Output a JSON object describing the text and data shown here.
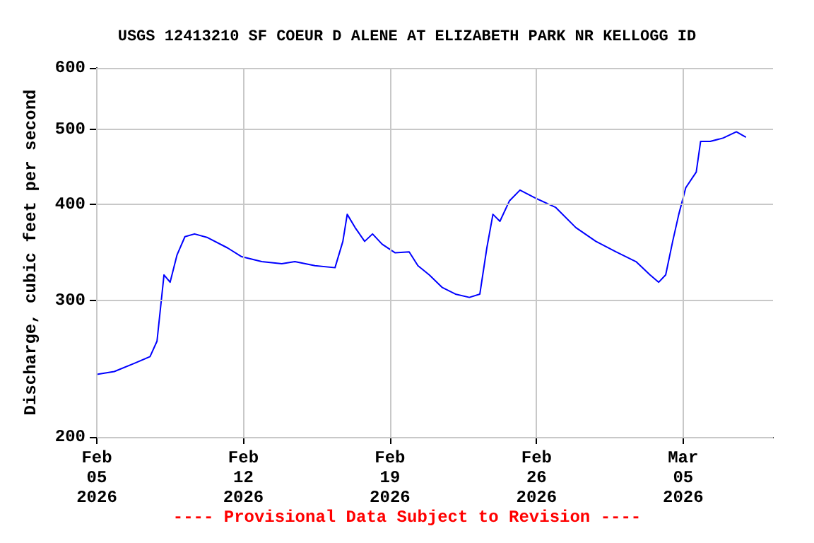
{
  "chart_data": {
    "type": "line",
    "title": "USGS 12413210 SF COEUR D ALENE AT ELIZABETH PARK NR KELLOGG ID",
    "ylabel": "Discharge, cubic feet per second",
    "annotations": [
      "---- Provisional Data Subject to Revision ----"
    ],
    "log": "y",
    "grid": true,
    "xlim": [
      "2026-02-05T00:00",
      "2026-03-09T07:00"
    ],
    "xticks": [
      {
        "value": "2026-02-05",
        "label": "Feb\n05\n2026"
      },
      {
        "value": "2026-02-12",
        "label": "Feb\n12\n2026"
      },
      {
        "value": "2026-02-19",
        "label": "Feb\n19\n2026"
      },
      {
        "value": "2026-02-26",
        "label": "Feb\n26\n2026"
      },
      {
        "value": "2026-03-05",
        "label": "Mar\n05\n2026"
      }
    ],
    "ylim": [
      200,
      600
    ],
    "yticks": [
      200,
      300,
      400,
      500,
      600
    ],
    "series": [
      {
        "color": "#0000ff",
        "x": [
          "2026-02-05T00:00",
          "2026-02-05T20:00",
          "2026-02-06T19:00",
          "2026-02-07T13:00",
          "2026-02-07T21:00",
          "2026-02-08T05:00",
          "2026-02-08T12:00",
          "2026-02-08T20:00",
          "2026-02-09T05:00",
          "2026-02-09T16:00",
          "2026-02-10T07:00",
          "2026-02-11T06:00",
          "2026-02-11T22:00",
          "2026-02-12T21:00",
          "2026-02-13T20:00",
          "2026-02-14T11:00",
          "2026-02-15T10:00",
          "2026-02-16T09:00",
          "2026-02-16T18:00",
          "2026-02-16T23:00",
          "2026-02-17T08:00",
          "2026-02-17T19:00",
          "2026-02-18T04:00",
          "2026-02-18T15:00",
          "2026-02-19T06:00",
          "2026-02-19T22:00",
          "2026-02-20T08:00",
          "2026-02-20T21:00",
          "2026-02-21T12:00",
          "2026-02-22T03:00",
          "2026-02-22T19:00",
          "2026-02-23T07:00",
          "2026-02-23T15:00",
          "2026-02-23T22:00",
          "2026-02-24T06:00",
          "2026-02-24T17:00",
          "2026-02-25T05:00",
          "2026-02-25T23:00",
          "2026-02-26T22:00",
          "2026-02-27T21:00",
          "2026-02-28T20:00",
          "2026-03-01T19:00",
          "2026-03-02T18:00",
          "2026-03-03T10:00",
          "2026-03-03T20:00",
          "2026-03-04T04:00",
          "2026-03-04T12:00",
          "2026-03-04T19:00",
          "2026-03-05T03:00",
          "2026-03-05T15:00",
          "2026-03-05T20:00",
          "2026-03-06T07:00",
          "2026-03-06T22:00",
          "2026-03-07T13:00",
          "2026-03-08T00:00"
        ],
        "values": [
          241,
          243,
          249,
          254,
          266,
          324,
          317,
          344,
          363,
          366,
          362,
          351,
          342,
          337,
          335,
          337,
          333,
          331,
          358,
          388,
          373,
          358,
          366,
          355,
          346,
          347,
          333,
          324,
          312,
          306,
          303,
          306,
          351,
          388,
          380,
          404,
          417,
          407,
          396,
          373,
          358,
          347,
          337,
          324,
          317,
          324,
          358,
          388,
          420,
          440,
          482,
          482,
          487,
          496,
          488
        ]
      }
    ]
  }
}
